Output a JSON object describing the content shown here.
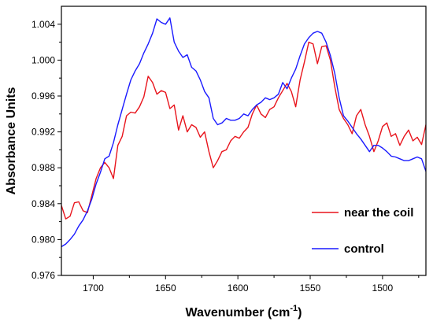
{
  "chart_data": {
    "type": "line",
    "xlabel": "Wavenumber (cm",
    "xlabel_sup": "-1",
    "xlabel_close": ")",
    "ylabel": "Absorbance Units",
    "xlim": [
      1722,
      1470
    ],
    "ylim": [
      0.976,
      1.006
    ],
    "x_reversed": true,
    "x_ticks": [
      1700,
      1650,
      1600,
      1550,
      1500
    ],
    "x_tick_labels": [
      "1700",
      "1650",
      "1600",
      "1550",
      "1500"
    ],
    "y_ticks": [
      0.976,
      0.98,
      0.984,
      0.988,
      0.992,
      0.996,
      1.0,
      1.004
    ],
    "y_tick_labels": [
      "0.976",
      "0.980",
      "0.984",
      "0.988",
      "0.992",
      "0.996",
      "1.000",
      "1.004"
    ],
    "grid": false,
    "legend_position": "bottom-right",
    "series": [
      {
        "name": "near the coil",
        "color": "#e8141c",
        "x": [
          1722,
          1719,
          1716,
          1713,
          1710,
          1707,
          1704,
          1701,
          1698,
          1695,
          1692,
          1689,
          1686,
          1683,
          1680,
          1677,
          1674,
          1671,
          1668,
          1665,
          1662,
          1659,
          1656,
          1653,
          1650,
          1647,
          1644,
          1641,
          1638,
          1635,
          1632,
          1629,
          1626,
          1623,
          1620,
          1617,
          1614,
          1611,
          1608,
          1605,
          1602,
          1599,
          1596,
          1593,
          1590,
          1587,
          1584,
          1581,
          1578,
          1575,
          1572,
          1569,
          1566,
          1563,
          1560,
          1557,
          1554,
          1551,
          1548,
          1545,
          1542,
          1539,
          1536,
          1533,
          1530,
          1527,
          1524,
          1521,
          1518,
          1515,
          1512,
          1509,
          1506,
          1503,
          1500,
          1497,
          1494,
          1491,
          1488,
          1485,
          1482,
          1479,
          1476,
          1473,
          1470
        ],
        "y": [
          0.9838,
          0.9823,
          0.9826,
          0.9841,
          0.9842,
          0.9832,
          0.983,
          0.9849,
          0.9868,
          0.988,
          0.9886,
          0.988,
          0.9868,
          0.9905,
          0.9915,
          0.9938,
          0.9942,
          0.9941,
          0.9948,
          0.9959,
          0.9982,
          0.9975,
          0.9962,
          0.9966,
          0.9964,
          0.9946,
          0.995,
          0.9922,
          0.9938,
          0.992,
          0.9928,
          0.9925,
          0.9914,
          0.992,
          0.9898,
          0.988,
          0.9888,
          0.9898,
          0.99,
          0.991,
          0.9915,
          0.9913,
          0.992,
          0.9925,
          0.994,
          0.995,
          0.994,
          0.9936,
          0.9945,
          0.9948,
          0.9958,
          0.9966,
          0.9974,
          0.9965,
          0.9948,
          0.9978,
          0.9998,
          1.002,
          1.0018,
          0.9996,
          1.0015,
          1.0016,
          1.0,
          0.997,
          0.9945,
          0.9935,
          0.9928,
          0.9918,
          0.9938,
          0.9945,
          0.9928,
          0.9915,
          0.9898,
          0.991,
          0.9926,
          0.993,
          0.9915,
          0.9918,
          0.9905,
          0.9915,
          0.9922,
          0.991,
          0.9914,
          0.9906,
          0.9928
        ]
      },
      {
        "name": "control",
        "color": "#1a1aff",
        "x": [
          1722,
          1719,
          1716,
          1713,
          1710,
          1707,
          1704,
          1701,
          1698,
          1695,
          1692,
          1689,
          1686,
          1683,
          1680,
          1677,
          1674,
          1671,
          1668,
          1665,
          1662,
          1659,
          1656,
          1653,
          1650,
          1647,
          1644,
          1641,
          1638,
          1635,
          1632,
          1629,
          1626,
          1623,
          1620,
          1617,
          1614,
          1611,
          1608,
          1605,
          1602,
          1599,
          1596,
          1593,
          1590,
          1587,
          1584,
          1581,
          1578,
          1575,
          1572,
          1569,
          1566,
          1563,
          1560,
          1557,
          1554,
          1551,
          1548,
          1545,
          1542,
          1539,
          1536,
          1533,
          1530,
          1527,
          1524,
          1521,
          1518,
          1515,
          1512,
          1509,
          1506,
          1503,
          1500,
          1497,
          1494,
          1491,
          1488,
          1485,
          1482,
          1479,
          1476,
          1473,
          1470
        ],
        "y": [
          0.9792,
          0.9795,
          0.98,
          0.9806,
          0.9815,
          0.9822,
          0.9832,
          0.9845,
          0.9862,
          0.9875,
          0.989,
          0.9893,
          0.9908,
          0.9928,
          0.9945,
          0.9962,
          0.9978,
          0.9988,
          0.9996,
          1.0008,
          1.0018,
          1.003,
          1.0046,
          1.0042,
          1.004,
          1.0047,
          1.002,
          1.001,
          1.0003,
          1.0006,
          0.9992,
          0.9988,
          0.9978,
          0.9965,
          0.9958,
          0.9935,
          0.9928,
          0.993,
          0.9935,
          0.9933,
          0.9933,
          0.9935,
          0.994,
          0.9938,
          0.9945,
          0.995,
          0.9953,
          0.9958,
          0.9956,
          0.9958,
          0.9962,
          0.9975,
          0.9968,
          0.998,
          0.999,
          1.0005,
          1.0018,
          1.0025,
          1.003,
          1.0032,
          1.003,
          1.002,
          1.0005,
          0.9985,
          0.9958,
          0.9938,
          0.9932,
          0.9925,
          0.9918,
          0.9912,
          0.9905,
          0.9898,
          0.9905,
          0.9905,
          0.9902,
          0.9898,
          0.9893,
          0.9892,
          0.989,
          0.9888,
          0.9888,
          0.989,
          0.9892,
          0.989,
          0.9876
        ]
      }
    ]
  }
}
